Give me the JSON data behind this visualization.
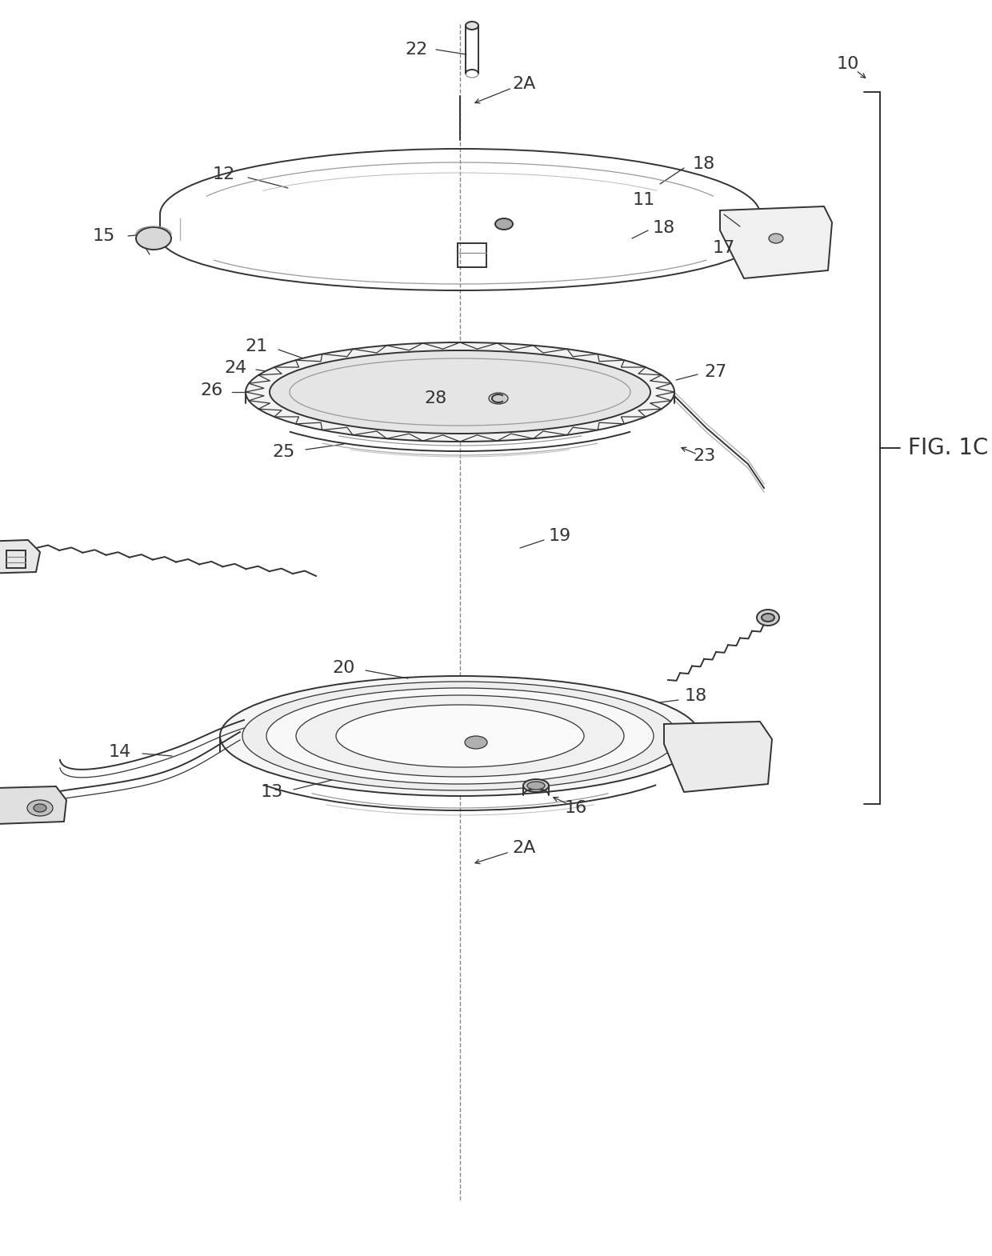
{
  "bg_color": "#ffffff",
  "lc": "#333333",
  "gray1": "#cccccc",
  "gray2": "#aaaaaa",
  "gray3": "#888888",
  "gray4": "#666666",
  "gray5": "#444444",
  "fig_label": "FIG. 1C"
}
